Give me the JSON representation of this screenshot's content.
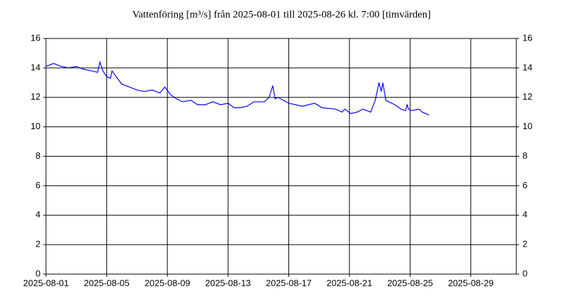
{
  "chart_data": {
    "type": "line",
    "title": "Vattenföring [m³/s] från 2025-08-01 till 2025-08-26 kl. 7:00 [timvärden]",
    "x": [
      0,
      0.5,
      1,
      1.5,
      2,
      2.5,
      3,
      3.4,
      3.55,
      3.75,
      4,
      4.25,
      4.35,
      4.7,
      5,
      5.5,
      6,
      6.5,
      7,
      7.5,
      7.83,
      8.2,
      8.6,
      9,
      9.55,
      10,
      10.5,
      11,
      11.5,
      12,
      12.4,
      12.8,
      13.26,
      13.7,
      14.4,
      14.7,
      14.95,
      15.1,
      15.3,
      16,
      16.9,
      17.7,
      18.2,
      19.1,
      19.5,
      19.7,
      20.1,
      20.5,
      20.9,
      21.4,
      21.7,
      21.95,
      22.1,
      22.2,
      22.4,
      23,
      23.4,
      23.7,
      23.8,
      23.9,
      24.1,
      24.6,
      24.8,
      25.25
    ],
    "series": [
      {
        "name": "Vattenföring",
        "color": "#0000ff",
        "values": [
          14.1,
          14.3,
          14.1,
          14.0,
          14.1,
          13.9,
          13.8,
          13.7,
          14.4,
          13.8,
          13.4,
          13.3,
          13.8,
          13.3,
          12.9,
          12.7,
          12.5,
          12.4,
          12.5,
          12.3,
          12.7,
          12.2,
          11.9,
          11.7,
          11.8,
          11.5,
          11.5,
          11.7,
          11.5,
          11.6,
          11.3,
          11.3,
          11.4,
          11.7,
          11.7,
          12.0,
          12.8,
          11.9,
          12.0,
          11.6,
          11.4,
          11.6,
          11.3,
          11.2,
          11.0,
          11.2,
          10.9,
          11.0,
          11.2,
          11.0,
          11.8,
          13.0,
          12.4,
          13.0,
          11.8,
          11.5,
          11.2,
          11.1,
          11.5,
          11.2,
          11.1,
          11.2,
          11.0,
          10.8
        ]
      }
    ],
    "xlim": [
      0,
      31
    ],
    "xticks": [
      {
        "value": 0,
        "label": "2025-08-01"
      },
      {
        "value": 4,
        "label": "2025-08-05"
      },
      {
        "value": 8,
        "label": "2025-08-09"
      },
      {
        "value": 12,
        "label": "2025-08-13"
      },
      {
        "value": 16,
        "label": "2025-08-17"
      },
      {
        "value": 20,
        "label": "2025-08-21"
      },
      {
        "value": 24,
        "label": "2025-08-25"
      },
      {
        "value": 28,
        "label": "2025-08-29"
      }
    ],
    "ylim": [
      0,
      16
    ],
    "yticks": [
      0,
      2,
      4,
      6,
      8,
      10,
      12,
      14,
      16
    ],
    "grid": true
  }
}
